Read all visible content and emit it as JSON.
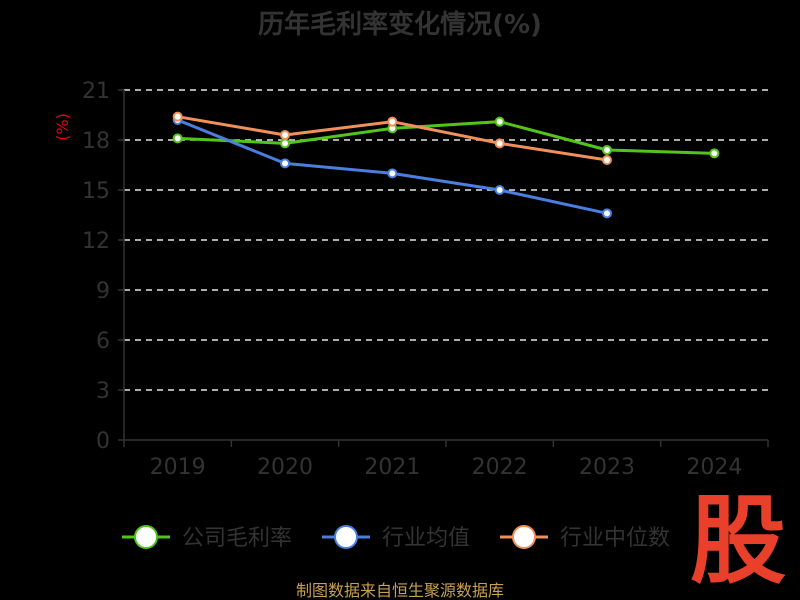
{
  "chart_data": {
    "type": "line",
    "title": "历年毛利率变化情况(%)",
    "ylabel": "(%)",
    "categories": [
      "2019",
      "2020",
      "2021",
      "2022",
      "2023",
      "2024"
    ],
    "yticks": [
      "0",
      "3",
      "6",
      "9",
      "12",
      "15",
      "18",
      "21"
    ],
    "ylim": [
      0,
      21
    ],
    "grid": true,
    "legend_position": "bottom",
    "series": [
      {
        "name": "公司毛利率",
        "color": "#52c41a",
        "values": [
          18.1,
          17.8,
          18.7,
          19.1,
          17.4,
          17.2
        ]
      },
      {
        "name": "行业均值",
        "color": "#4a7fe0",
        "values": [
          19.2,
          16.6,
          16.0,
          15.0,
          13.6,
          null
        ]
      },
      {
        "name": "行业中位数",
        "color": "#f0905a",
        "values": [
          19.4,
          18.3,
          19.1,
          17.8,
          16.8,
          null
        ]
      }
    ]
  },
  "logo_text": "股",
  "source": "制图数据来自恒生聚源数据库"
}
